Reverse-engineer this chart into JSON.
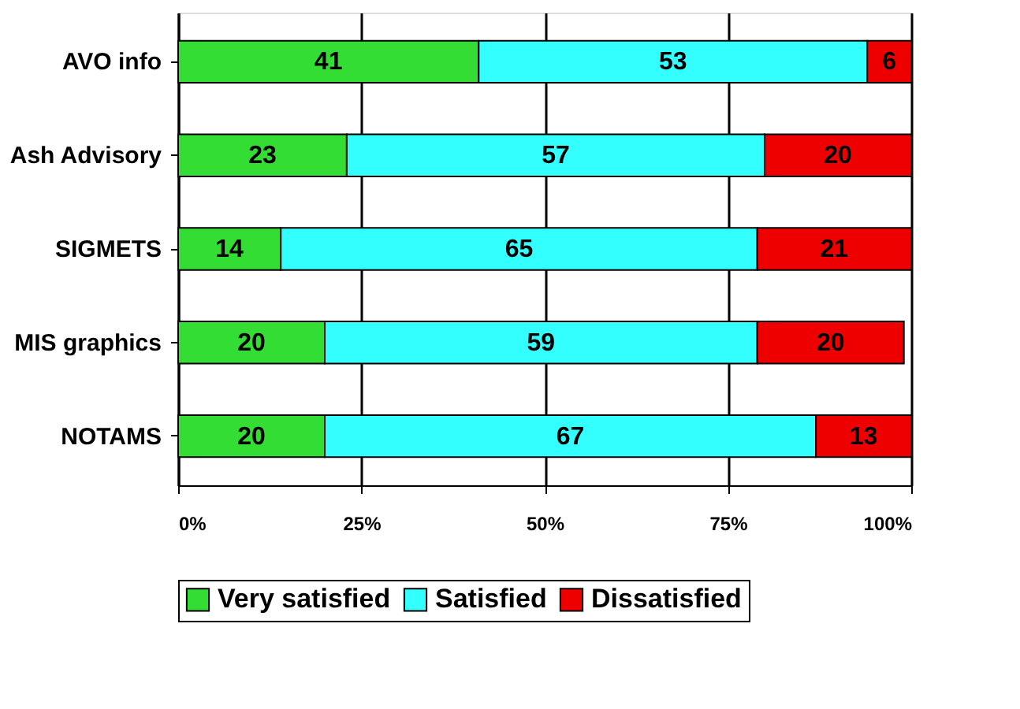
{
  "chart_data": {
    "type": "bar",
    "orientation": "horizontal",
    "stacked": true,
    "data_labels": true,
    "grid": "x",
    "legend": "bottom",
    "categories": [
      "AVO info",
      "Ash Advisory",
      "SIGMETS",
      "MIS graphics",
      "NOTAMS"
    ],
    "series": [
      {
        "name": "Very satisfied",
        "color": "#33dd33",
        "values": [
          41,
          23,
          14,
          20,
          20
        ]
      },
      {
        "name": "Satisfied",
        "color": "#33ffff",
        "values": [
          53,
          57,
          65,
          59,
          67
        ]
      },
      {
        "name": "Dissatisfied",
        "color": "#ee0000",
        "values": [
          6,
          20,
          21,
          20,
          13
        ]
      }
    ],
    "xlim": [
      0,
      100
    ],
    "xticks": [
      {
        "value": 0,
        "label": "0%"
      },
      {
        "value": 25,
        "label": "25%"
      },
      {
        "value": 50,
        "label": "50%"
      },
      {
        "value": 75,
        "label": "75%"
      },
      {
        "value": 100,
        "label": "100%"
      }
    ]
  }
}
